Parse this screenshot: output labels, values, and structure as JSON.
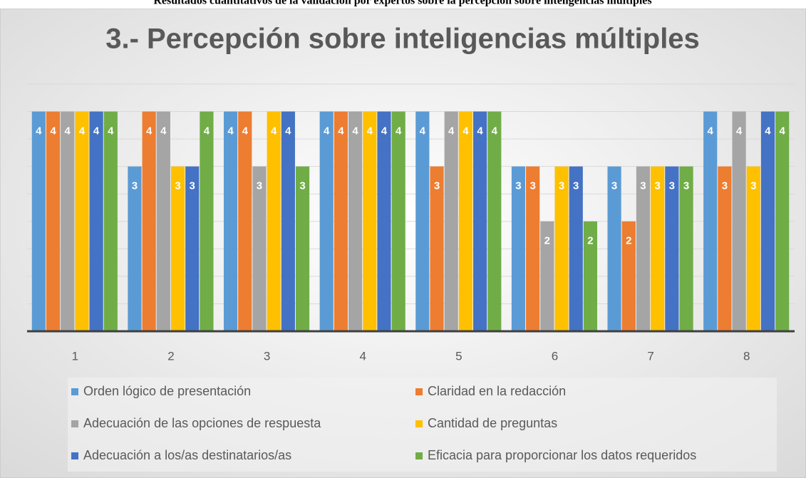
{
  "caption": "Resultados cuantitativos de la validación por expertos sobre la percepción sobre inteligencias múltiples",
  "chart_data": {
    "type": "bar",
    "title": "3.- Percepción sobre inteligencias múltiples",
    "categories": [
      "1",
      "2",
      "3",
      "4",
      "5",
      "6",
      "7",
      "8"
    ],
    "series": [
      {
        "name": "Orden lógico de presentación",
        "color": "#5b9bd5",
        "values": [
          4,
          3,
          4,
          4,
          4,
          3,
          3,
          4
        ]
      },
      {
        "name": "Claridad en la redacción",
        "color": "#ed7d31",
        "values": [
          4,
          4,
          4,
          4,
          3,
          3,
          2,
          3
        ]
      },
      {
        "name": "Adecuación de las opciones de respuesta",
        "color": "#a5a5a5",
        "values": [
          4,
          4,
          3,
          4,
          4,
          2,
          3,
          4
        ]
      },
      {
        "name": "Cantidad de preguntas",
        "color": "#ffc000",
        "values": [
          4,
          3,
          4,
          4,
          4,
          3,
          3,
          3
        ]
      },
      {
        "name": "Adecuación a los/as destinatarios/as",
        "color": "#4472c4",
        "values": [
          4,
          3,
          4,
          4,
          4,
          3,
          3,
          4
        ]
      },
      {
        "name": "Eficacia para proporcionar los datos requeridos",
        "color": "#70ad47",
        "values": [
          4,
          4,
          3,
          4,
          4,
          2,
          3,
          4
        ]
      }
    ],
    "ylim": [
      0,
      4.5
    ],
    "yticks": [
      0,
      0.5,
      1,
      1.5,
      2,
      2.5,
      3,
      3.5,
      4,
      4.5
    ],
    "grid": true,
    "legend": "bottom"
  }
}
